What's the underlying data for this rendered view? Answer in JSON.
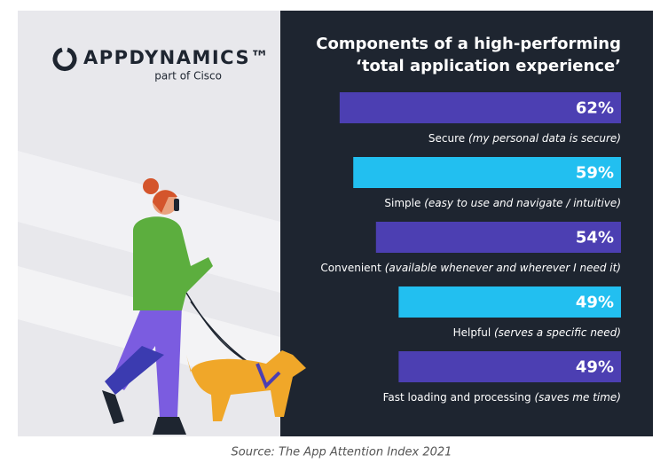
{
  "logo": {
    "name": "APPDYNAMICS™",
    "tagline": "part of Cisco"
  },
  "source": "Source: The App Attention Index 2021",
  "chart_data": {
    "type": "bar",
    "orientation": "horizontal",
    "title": [
      "Components of a high-performing",
      "‘total application experience’"
    ],
    "categories": [
      "Secure",
      "Simple",
      "Convenient",
      "Helpful",
      "Fast loading and processing"
    ],
    "notes": [
      "(my personal data is secure)",
      "(easy to use and navigate / intuitive)",
      "(available whenever and wherever I need it)",
      "(serves a specific need)",
      "(saves me time)"
    ],
    "values": [
      62,
      59,
      54,
      49,
      49
    ],
    "value_labels": [
      "62%",
      "59%",
      "54%",
      "49%",
      "49%"
    ],
    "colors": [
      "#4c3fb2",
      "#22bff0",
      "#4c3fb2",
      "#22bff0",
      "#4c3fb2"
    ],
    "xlim": [
      0,
      100
    ]
  }
}
